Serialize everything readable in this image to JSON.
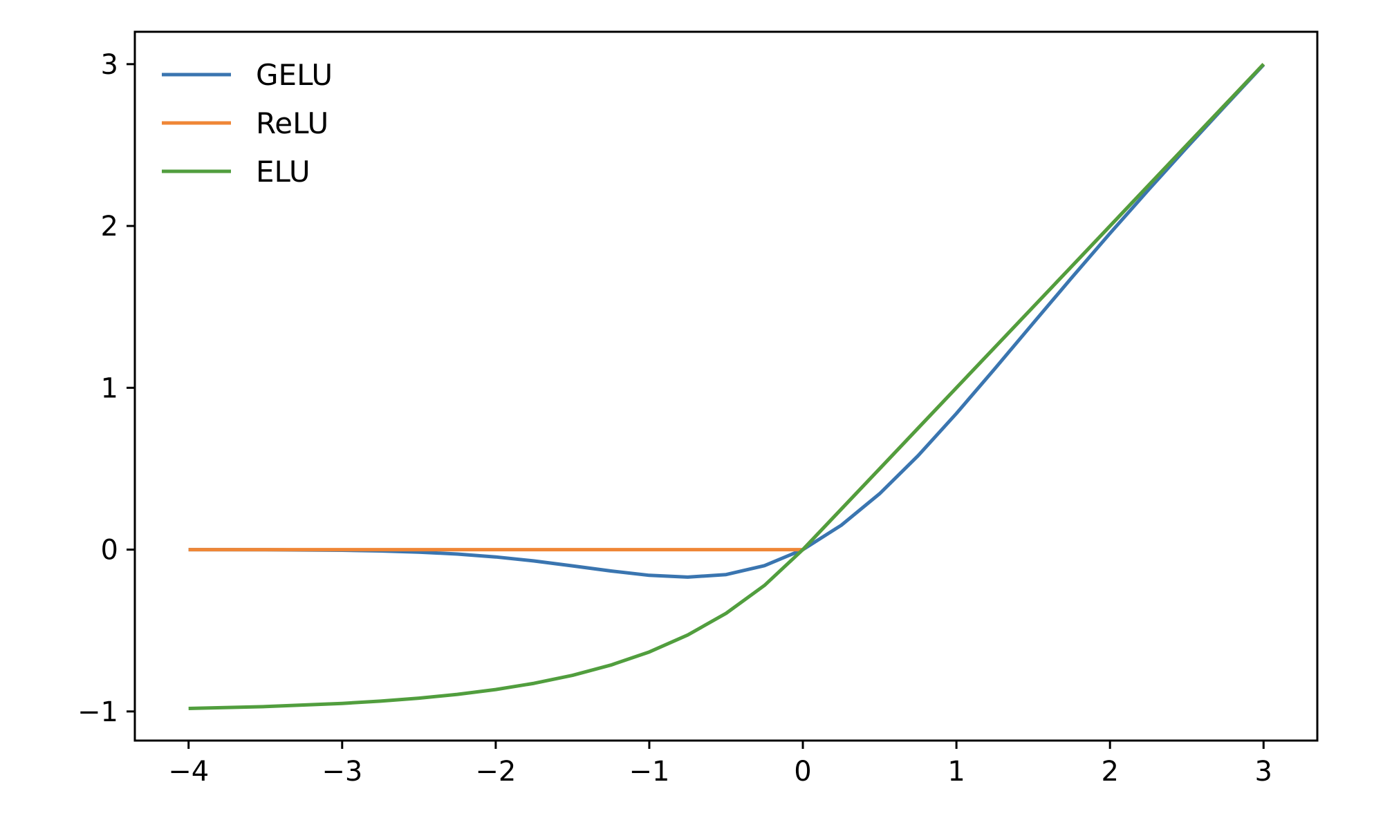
{
  "chart_data": {
    "type": "line",
    "title": "",
    "xlabel": "",
    "ylabel": "",
    "xlim": [
      -4.35,
      3.35
    ],
    "ylim": [
      -1.18,
      3.2
    ],
    "xticks": [
      -4,
      -3,
      -2,
      -1,
      0,
      1,
      2,
      3
    ],
    "xtick_labels": [
      "−4",
      "−3",
      "−2",
      "−1",
      "0",
      "1",
      "2",
      "3"
    ],
    "yticks": [
      -1,
      0,
      1,
      2,
      3
    ],
    "ytick_labels": [
      "−1",
      "0",
      "1",
      "2",
      "3"
    ],
    "grid": false,
    "legend_position": "top-left",
    "x": [
      -4.0,
      -3.5,
      -3.0,
      -2.75,
      -2.5,
      -2.25,
      -2.0,
      -1.75,
      -1.5,
      -1.25,
      -1.0,
      -0.75,
      -0.5,
      -0.25,
      0.0,
      0.25,
      0.5,
      0.75,
      1.0,
      1.25,
      1.5,
      1.75,
      2.0,
      2.25,
      2.5,
      2.75,
      3.0
    ],
    "series": [
      {
        "name": "GELU",
        "color": "#3a75b0",
        "values": [
          -0.0001,
          -0.0008,
          -0.004,
          -0.0082,
          -0.0155,
          -0.0274,
          -0.0455,
          -0.0702,
          -0.1002,
          -0.132,
          -0.1587,
          -0.1699,
          -0.1543,
          -0.0993,
          0.0,
          0.1507,
          0.3457,
          0.5801,
          0.8413,
          1.118,
          1.3998,
          1.6798,
          1.9545,
          2.2226,
          2.4845,
          2.7418,
          2.996
        ]
      },
      {
        "name": "ReLU",
        "color": "#ef8636",
        "values": [
          0,
          0,
          0,
          0,
          0,
          0,
          0,
          0,
          0,
          0,
          0,
          0,
          0,
          0,
          0,
          0.25,
          0.5,
          0.75,
          1.0,
          1.25,
          1.5,
          1.75,
          2.0,
          2.25,
          2.5,
          2.75,
          3.0
        ]
      },
      {
        "name": "ELU",
        "color": "#519e3e",
        "values": [
          -0.9817,
          -0.9698,
          -0.9502,
          -0.9361,
          -0.9179,
          -0.8946,
          -0.8647,
          -0.8262,
          -0.7769,
          -0.7135,
          -0.6321,
          -0.5276,
          -0.3935,
          -0.2212,
          0.0,
          0.25,
          0.5,
          0.75,
          1.0,
          1.25,
          1.5,
          1.75,
          2.0,
          2.25,
          2.5,
          2.75,
          3.0
        ]
      }
    ]
  }
}
